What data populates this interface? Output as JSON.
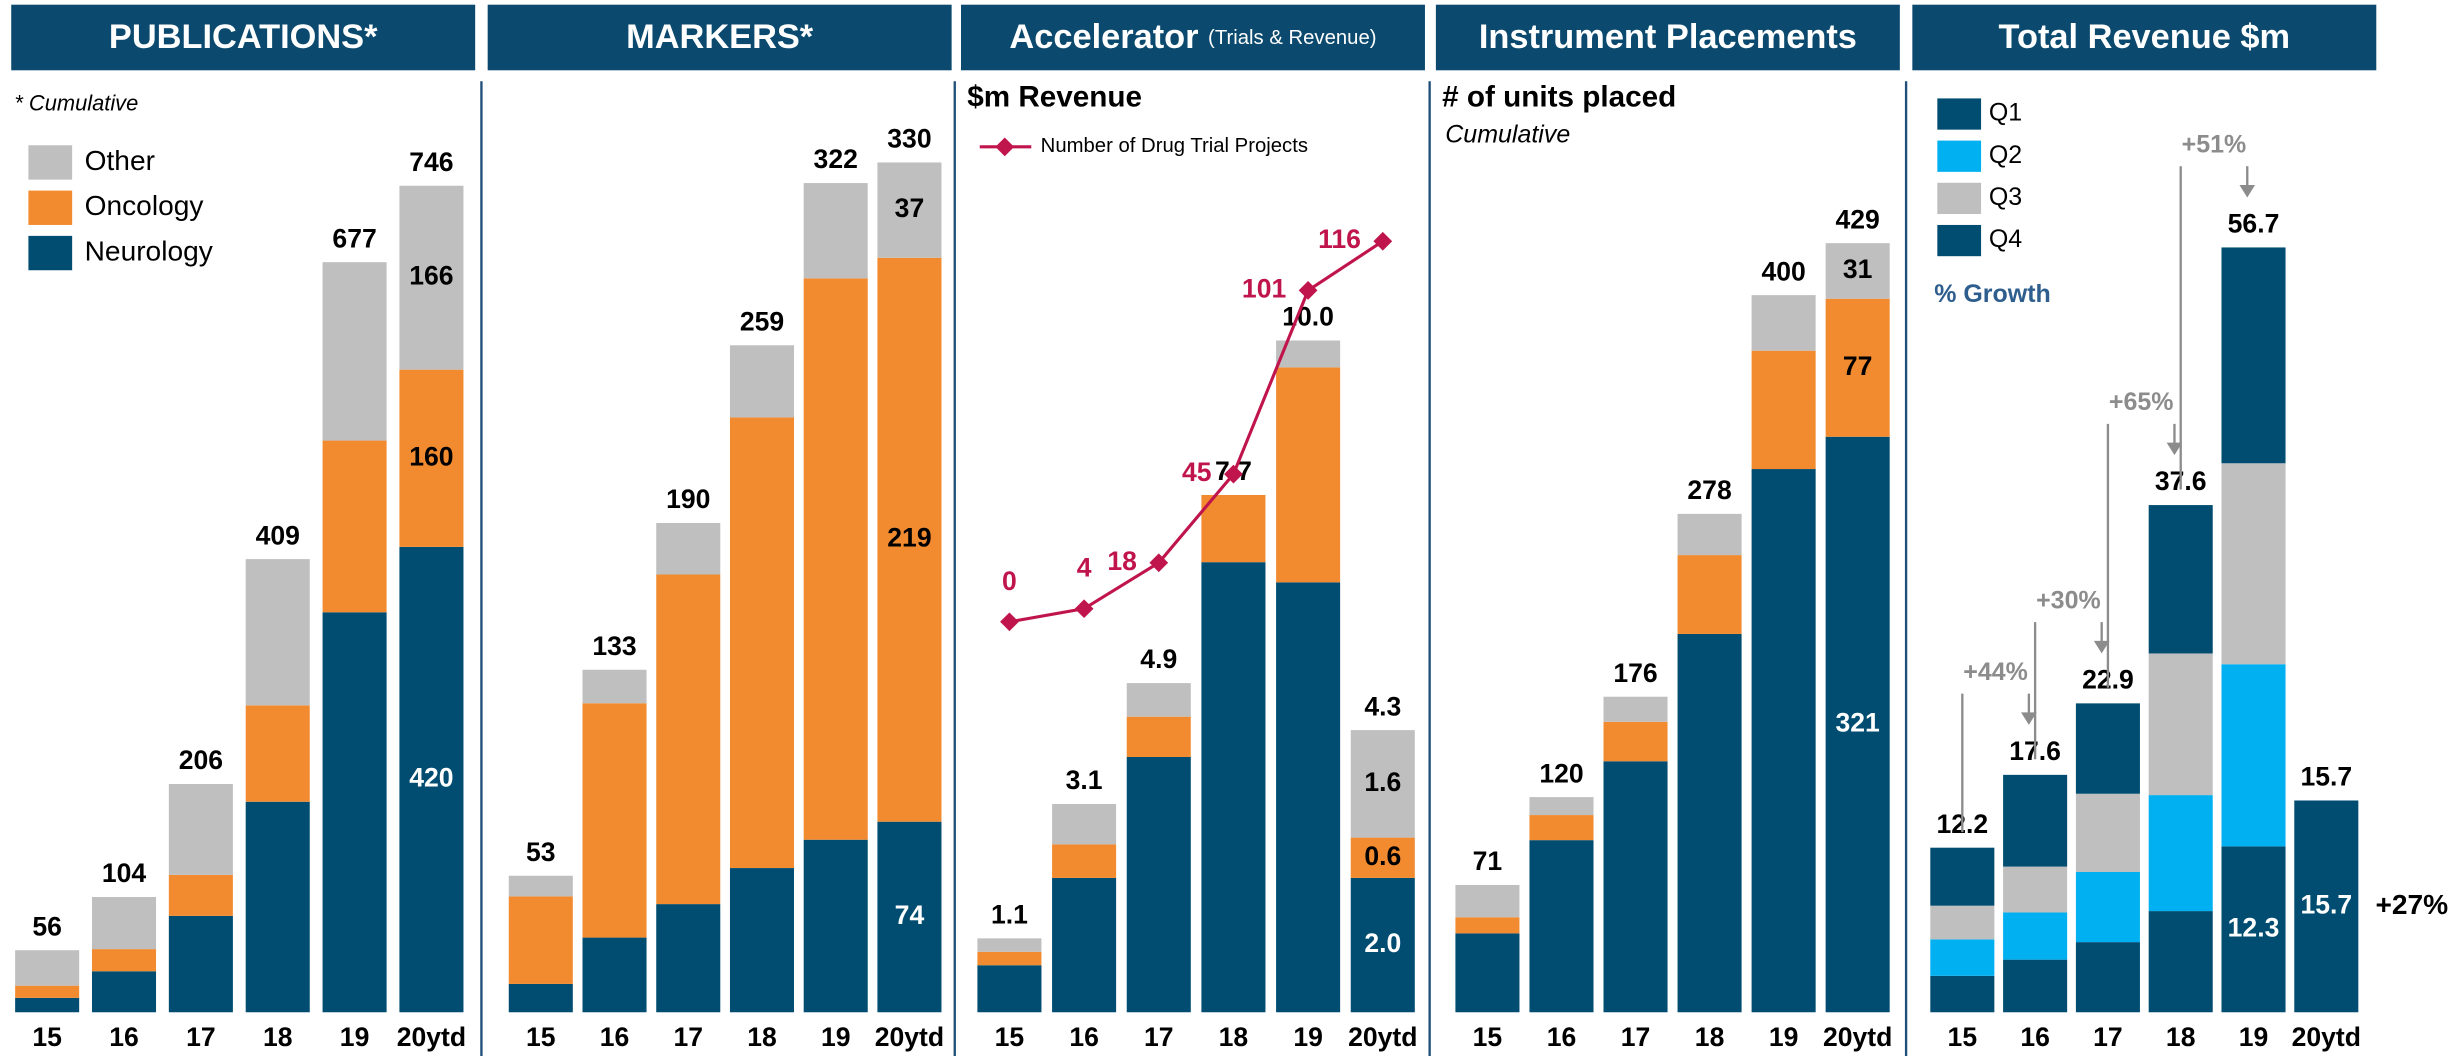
{
  "chart_data": [
    {
      "type": "bar",
      "stacked": true,
      "title": "PUBLICATIONS*",
      "note": "* Cumulative",
      "categories": [
        "15",
        "16",
        "17",
        "18",
        "19",
        "20ytd"
      ],
      "series": [
        {
          "name": "Neurology",
          "color": "#004d71",
          "values": [
            13,
            37,
            87,
            190,
            361,
            420
          ],
          "value_labels": [
            null,
            null,
            null,
            null,
            null,
            "420"
          ]
        },
        {
          "name": "Oncology",
          "color": "#f28b30",
          "values": [
            11,
            20,
            37,
            87,
            155,
            160
          ],
          "value_labels": [
            null,
            null,
            null,
            null,
            null,
            "160"
          ]
        },
        {
          "name": "Other",
          "color": "#bfbfbf",
          "values": [
            32,
            47,
            82,
            132,
            161,
            166
          ],
          "value_labels": [
            null,
            null,
            null,
            null,
            null,
            "166"
          ]
        }
      ],
      "totals": [
        56,
        104,
        206,
        409,
        677,
        746
      ],
      "ylim": [
        0,
        767
      ],
      "legend": "top-left",
      "legend_reverse": true
    },
    {
      "type": "bar",
      "stacked": true,
      "title": "MARKERS*",
      "categories": [
        "15",
        "16",
        "17",
        "18",
        "19",
        "20ytd"
      ],
      "series": [
        {
          "color": "#004d71",
          "values": [
            11,
            29,
            42,
            56,
            67,
            74
          ],
          "value_labels": [
            null,
            null,
            null,
            null,
            null,
            "74"
          ]
        },
        {
          "color": "#f28b30",
          "values": [
            34,
            91,
            128,
            175,
            218,
            219
          ],
          "value_labels": [
            null,
            null,
            null,
            null,
            null,
            "219"
          ]
        },
        {
          "color": "#bfbfbf",
          "values": [
            8,
            13,
            20,
            28,
            37,
            37
          ],
          "value_labels": [
            null,
            null,
            null,
            null,
            null,
            "37"
          ]
        }
      ],
      "totals": [
        53,
        133,
        190,
        259,
        322,
        330
      ],
      "ylim": [
        0,
        330
      ]
    },
    {
      "type": "bar",
      "stacked": true,
      "title": "Accelerator",
      "title_note": "(Trials & Revenue)",
      "subtitle": "$m Revenue",
      "categories": [
        "15",
        "16",
        "17",
        "18",
        "19",
        "20ytd"
      ],
      "series": [
        {
          "color": "#004d71",
          "values": [
            0.7,
            2.0,
            3.8,
            6.7,
            6.4,
            2.0
          ],
          "value_labels": [
            null,
            null,
            null,
            null,
            null,
            "2.0"
          ]
        },
        {
          "color": "#f28b30",
          "values": [
            0.2,
            0.5,
            0.6,
            1.0,
            3.2,
            0.6
          ],
          "value_labels": [
            null,
            null,
            null,
            null,
            null,
            "0.6"
          ]
        },
        {
          "color": "#bfbfbf",
          "values": [
            0.2,
            0.6,
            0.5,
            0,
            0.4,
            1.6
          ],
          "value_labels": [
            null,
            null,
            null,
            null,
            null,
            "1.6"
          ]
        },
        {
          "name": "Number of Drug Trial Projects",
          "type": "line",
          "axis": "y2",
          "color": "#c0144c",
          "values": [
            0,
            4,
            18,
            45,
            101,
            116
          ]
        }
      ],
      "totals": [
        1.1,
        3.1,
        4.9,
        7.7,
        10.0,
        4.3
      ],
      "total_labels": [
        "1.1",
        "3.1",
        "4.9",
        "7.7",
        "10.0",
        "4.3"
      ],
      "ylim": [
        0,
        12.65
      ],
      "y2lim": [
        -119,
        140
      ],
      "legend": "top-left"
    },
    {
      "type": "bar",
      "stacked": true,
      "title": "Instrument Placements",
      "subtitle": "# of units placed",
      "note": "Cumulative",
      "categories": [
        "15",
        "16",
        "17",
        "18",
        "19",
        "20ytd"
      ],
      "series": [
        {
          "color": "#004d71",
          "values": [
            44,
            96,
            140,
            211,
            303,
            321
          ],
          "value_labels": [
            null,
            null,
            null,
            null,
            null,
            "321"
          ]
        },
        {
          "color": "#f28b30",
          "values": [
            9,
            14,
            22,
            44,
            66,
            77
          ],
          "value_labels": [
            null,
            null,
            null,
            null,
            null,
            "77"
          ]
        },
        {
          "color": "#bfbfbf",
          "values": [
            18,
            10,
            14,
            23,
            31,
            31
          ],
          "value_labels": [
            null,
            null,
            null,
            null,
            null,
            "31"
          ]
        }
      ],
      "totals": [
        71,
        120,
        176,
        278,
        400,
        429
      ],
      "ylim": [
        0,
        474
      ]
    },
    {
      "type": "bar",
      "stacked": true,
      "title": "Total Revenue $m",
      "legend_note": "% Growth",
      "categories": [
        "15",
        "16",
        "17",
        "18",
        "19",
        "20ytd"
      ],
      "series": [
        {
          "name": "Q1",
          "color": "#004d71",
          "values": [
            2.7,
            3.9,
            5.2,
            7.5,
            12.3,
            15.7
          ],
          "value_labels": [
            null,
            null,
            null,
            null,
            "12.3",
            "15.7"
          ]
        },
        {
          "name": "Q2",
          "color": "#00b0f0",
          "values": [
            2.7,
            3.5,
            5.2,
            8.6,
            13.5,
            null
          ]
        },
        {
          "name": "Q3",
          "color": "#bfbfbf",
          "values": [
            2.5,
            3.4,
            5.8,
            10.5,
            14.9,
            null
          ]
        },
        {
          "name": "Q4",
          "color": "#004d71",
          "values": [
            4.3,
            6.8,
            6.7,
            11.0,
            16.0,
            null
          ]
        }
      ],
      "totals": [
        12.2,
        17.6,
        22.9,
        37.6,
        56.7,
        15.7
      ],
      "growth_labels": [
        "+44%",
        "+30%",
        "+65%",
        "+51%"
      ],
      "ytd_growth": "+27%",
      "ylim": [
        0,
        63
      ],
      "legend": "top-left"
    }
  ]
}
